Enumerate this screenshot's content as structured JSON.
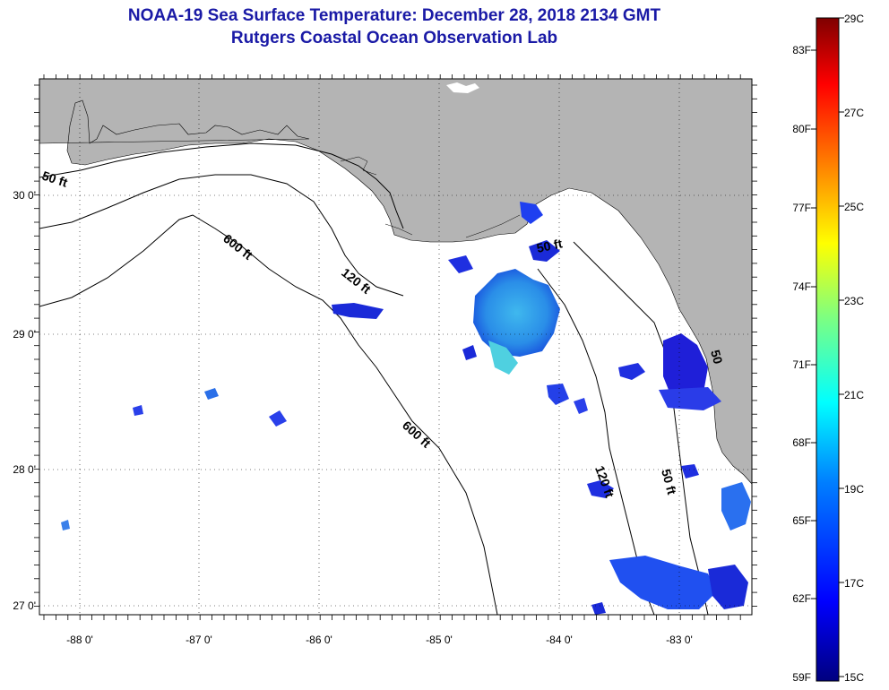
{
  "header": {
    "title_line1": "NOAA-19 Sea Surface Temperature:  December 28, 2018 2134 GMT",
    "title_line2": "Rutgers Coastal Ocean Observation Lab"
  },
  "map": {
    "lat_ticks": [
      "30 0'",
      "29 0'",
      "28 0'",
      "27 0'"
    ],
    "lon_ticks": [
      "-88 0'",
      "-87 0'",
      "-86 0'",
      "-85 0'",
      "-84 0'",
      "-83 0'"
    ],
    "contour_labels": [
      "50 ft",
      "600 ft",
      "120 ft",
      "50 ft",
      "600 ft",
      "120 ft",
      "50 ft",
      "50"
    ],
    "colors": {
      "land": "#b4b4b4",
      "ocean": "#ffffff",
      "frame": "#000000"
    }
  },
  "colorbar": {
    "fahrenheit_labels": [
      "83F",
      "80F",
      "77F",
      "74F",
      "71F",
      "68F",
      "65F",
      "62F",
      "59F"
    ],
    "celsius_labels": [
      "29C",
      "27C",
      "25C",
      "23C",
      "21C",
      "19C",
      "17C",
      "15C"
    ],
    "range_celsius": [
      15,
      29
    ],
    "colormap": [
      "#00007f",
      "#0000ff",
      "#007fff",
      "#00ffff",
      "#7fff7f",
      "#ffff00",
      "#ff7f00",
      "#ff0000",
      "#7f0000"
    ]
  }
}
